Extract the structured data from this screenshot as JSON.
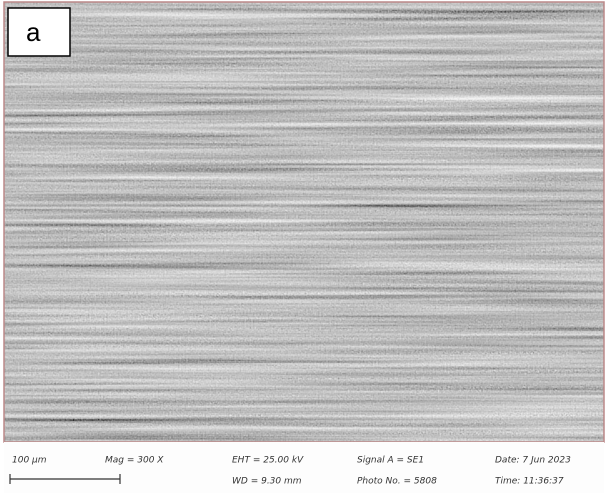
{
  "panel_label": "a",
  "info_bar": {
    "scale": "100 µm",
    "magnification": "Mag = 300 X",
    "eht": "EHT = 25.00 kV",
    "wd": "WD = 9.30 mm",
    "signal": "Signal A = SE1",
    "photo": "Photo No. = 5808",
    "date": "Date: 7 Jun 2023",
    "time": "Time: 11:36:37"
  }
}
